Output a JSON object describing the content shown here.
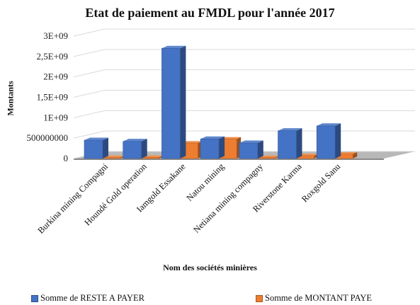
{
  "chart_data": {
    "type": "bar",
    "title": "Etat de paiement au FMDL pour l'année 2017",
    "xlabel": "Nom des sociétés minières",
    "ylabel": "Montants",
    "ylim": [
      0,
      3000000000
    ],
    "yticks": [
      "0",
      "500000000",
      "1E+09",
      "1,5E+09",
      "2E+09",
      "2,5E+09",
      "3E+09"
    ],
    "categories": [
      "Burkina mining Compagni",
      "Houndé Gold operation",
      "Iamgold Essakane",
      "Natou mining",
      "Netiana mining compagny",
      "Riverstone Karma",
      "Roxgold Sanu"
    ],
    "series": [
      {
        "name": "Somme de RESTE A PAYER",
        "color": "#4472C4",
        "values": [
          450000000,
          420000000,
          2700000000,
          480000000,
          380000000,
          680000000,
          800000000
        ]
      },
      {
        "name": "Somme de MONTANT PAYE",
        "color": "#ED7D31",
        "values": [
          20000000,
          30000000,
          380000000,
          480000000,
          25000000,
          70000000,
          110000000
        ]
      }
    ],
    "grid": true,
    "legend": "bottom"
  }
}
